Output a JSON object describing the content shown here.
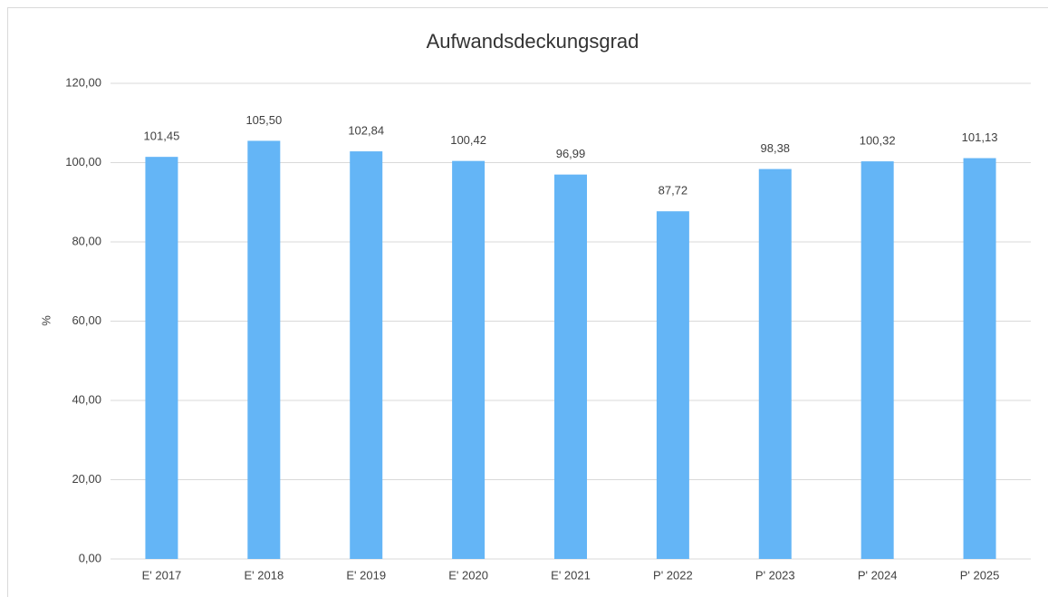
{
  "chart_data": {
    "type": "bar",
    "title": "Aufwandsdeckungsgrad",
    "y_label": "%",
    "categories": [
      "E' 2017",
      "E' 2018",
      "E' 2019",
      "E' 2020",
      "E' 2021",
      "P' 2022",
      "P' 2023",
      "P' 2024",
      "P' 2025"
    ],
    "values": [
      101.45,
      105.5,
      102.84,
      100.42,
      96.99,
      87.72,
      98.38,
      100.32,
      101.13
    ],
    "value_labels": [
      "101,45",
      "105,50",
      "102,84",
      "100,42",
      "96,99",
      "87,72",
      "98,38",
      "100,32",
      "101,13"
    ],
    "color": "#64b5f6",
    "ylim": [
      0,
      120
    ],
    "yticks": [
      {
        "value": 0,
        "label": "0,00"
      },
      {
        "value": 20,
        "label": "20,00"
      },
      {
        "value": 40,
        "label": "40,00"
      },
      {
        "value": 60,
        "label": "60,00"
      },
      {
        "value": 80,
        "label": "80,00"
      },
      {
        "value": 100,
        "label": "100,00"
      },
      {
        "value": 120,
        "label": "120,00"
      }
    ],
    "grid": true
  }
}
